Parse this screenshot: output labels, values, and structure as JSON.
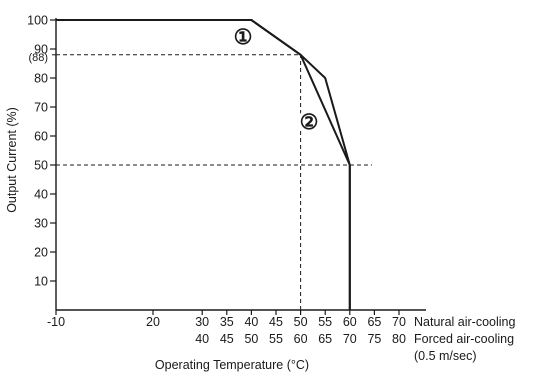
{
  "chart_data": {
    "type": "line",
    "xlabel": "Operating Temperature (°C)",
    "ylabel": "Output Current (%)",
    "yticks": [
      "10",
      "20",
      "30",
      "40",
      "50",
      "60",
      "70",
      "80",
      "90",
      "100"
    ],
    "ytick_extra": "(88)",
    "ylim": [
      0,
      100
    ],
    "xlim": [
      -10,
      70
    ],
    "xaxis_rows": [
      {
        "name": "Natural air-cooling",
        "ticks": [
          "-10",
          "20",
          "30",
          "35",
          "40",
          "45",
          "50",
          "55",
          "60",
          "65",
          "70"
        ],
        "tick_x": [
          -10,
          20,
          30,
          35,
          40,
          45,
          50,
          55,
          60,
          65,
          70
        ]
      },
      {
        "name": "Forced air-cooling",
        "note": "(0.5 m/sec)",
        "ticks": [
          "40",
          "45",
          "50",
          "55",
          "60",
          "65",
          "70",
          "75",
          "80"
        ],
        "tick_x": [
          30,
          35,
          40,
          45,
          50,
          55,
          60,
          65,
          70
        ]
      }
    ],
    "series": [
      {
        "marker": "①",
        "x": [
          -10,
          40,
          50,
          60,
          60
        ],
        "y": [
          100,
          100,
          88,
          50,
          0
        ]
      },
      {
        "marker": "②",
        "x": [
          -10,
          40,
          50,
          55,
          60,
          60
        ],
        "y": [
          100,
          100,
          88,
          80,
          50,
          0
        ]
      }
    ],
    "reference_lines": [
      {
        "axis": "y",
        "value": 88,
        "from_x": -10,
        "to_x": 50
      },
      {
        "axis": "y",
        "value": 50,
        "from_x": -10,
        "to_x": 62
      },
      {
        "axis": "x",
        "value": 50,
        "from_y": 0,
        "to_y": 88
      }
    ]
  }
}
